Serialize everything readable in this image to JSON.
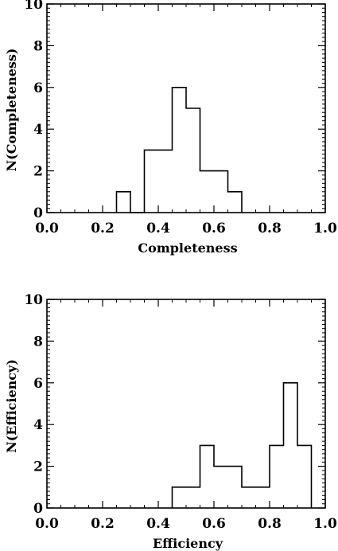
{
  "chart_data": [
    {
      "type": "histogram",
      "xlabel": "Completeness",
      "ylabel": "N(Completeness)",
      "xlim": [
        0.0,
        1.0
      ],
      "ylim": [
        0,
        10
      ],
      "bin_width": 0.05,
      "bins": [
        {
          "x0": 0.25,
          "x1": 0.3,
          "value": 1
        },
        {
          "x0": 0.3,
          "x1": 0.35,
          "value": 0
        },
        {
          "x0": 0.35,
          "x1": 0.4,
          "value": 3
        },
        {
          "x0": 0.4,
          "x1": 0.45,
          "value": 3
        },
        {
          "x0": 0.45,
          "x1": 0.5,
          "value": 6
        },
        {
          "x0": 0.5,
          "x1": 0.55,
          "value": 5
        },
        {
          "x0": 0.55,
          "x1": 0.6,
          "value": 2
        },
        {
          "x0": 0.6,
          "x1": 0.65,
          "value": 2
        },
        {
          "x0": 0.65,
          "x1": 0.7,
          "value": 1
        }
      ],
      "x_ticks": [
        "0.0",
        "0.2",
        "0.4",
        "0.6",
        "0.8",
        "1.0"
      ],
      "y_ticks": [
        "0",
        "2",
        "4",
        "6",
        "8",
        "10"
      ],
      "grid": false
    },
    {
      "type": "histogram",
      "xlabel": "Efficiency",
      "ylabel": "N(Efficiency)",
      "xlim": [
        0.0,
        1.0
      ],
      "ylim": [
        0,
        10
      ],
      "bin_width": 0.05,
      "bins": [
        {
          "x0": 0.45,
          "x1": 0.5,
          "value": 1
        },
        {
          "x0": 0.5,
          "x1": 0.55,
          "value": 1
        },
        {
          "x0": 0.55,
          "x1": 0.6,
          "value": 3
        },
        {
          "x0": 0.6,
          "x1": 0.65,
          "value": 2
        },
        {
          "x0": 0.65,
          "x1": 0.7,
          "value": 2
        },
        {
          "x0": 0.7,
          "x1": 0.75,
          "value": 1
        },
        {
          "x0": 0.75,
          "x1": 0.8,
          "value": 1
        },
        {
          "x0": 0.8,
          "x1": 0.85,
          "value": 3
        },
        {
          "x0": 0.85,
          "x1": 0.9,
          "value": 6
        },
        {
          "x0": 0.9,
          "x1": 0.95,
          "value": 3
        }
      ],
      "x_ticks": [
        "0.0",
        "0.2",
        "0.4",
        "0.6",
        "0.8",
        "1.0"
      ],
      "y_ticks": [
        "0",
        "2",
        "4",
        "6",
        "8",
        "10"
      ],
      "grid": false
    }
  ]
}
